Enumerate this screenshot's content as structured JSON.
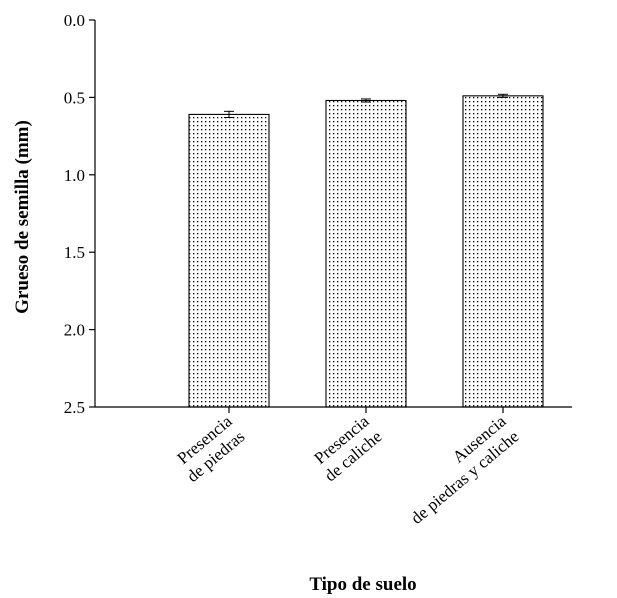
{
  "chart_data": {
    "type": "bar",
    "title": "",
    "xlabel": "Tipo de suelo",
    "ylabel": "Grueso de semilla (mm)",
    "y_axis_inverted": true,
    "ylim": [
      0.0,
      2.5
    ],
    "yticks": [
      "0.0",
      "0.5",
      "1.0",
      "1.5",
      "2.0",
      "2.5"
    ],
    "categories": [
      [
        "Presencia",
        "de piedras"
      ],
      [
        "Presencia",
        "de caliche"
      ],
      [
        "Ausencia",
        "de piedras y caliche"
      ]
    ],
    "values": [
      0.61,
      0.52,
      0.49
    ],
    "errors": [
      0.02,
      0.01,
      0.01
    ],
    "bar_fill": "dotted pattern",
    "bar_color": "#000000",
    "grid": false,
    "legend": "none"
  }
}
